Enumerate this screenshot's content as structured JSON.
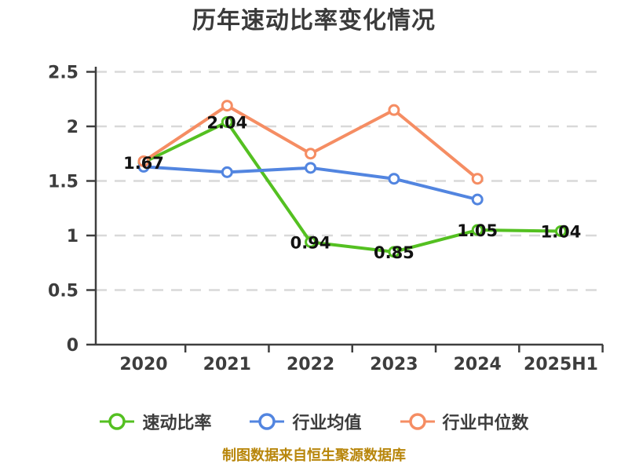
{
  "title": "历年速动比率变化情况",
  "source_note": "制图数据来自恒生聚源数据库",
  "colors": {
    "quick_ratio": "#54c021",
    "industry_avg": "#5285e0",
    "industry_median": "#f58d63",
    "grid": "#d9d9d9",
    "axis": "#3f3f3f",
    "tick": "#3d3d3d",
    "value_label": "#111111",
    "title": "#3b3b3b",
    "source": "#b8860b",
    "marker_fill": "#ffffff"
  },
  "chart_data": {
    "type": "line",
    "title": "历年速动比率变化情况",
    "categories": [
      "2020",
      "2021",
      "2022",
      "2023",
      "2024",
      "2025H1"
    ],
    "series": [
      {
        "name": "速动比率",
        "color_key": "quick_ratio",
        "labeled": true,
        "values": [
          1.67,
          2.04,
          0.94,
          0.85,
          1.05,
          1.04
        ]
      },
      {
        "name": "行业均值",
        "color_key": "industry_avg",
        "labeled": false,
        "values": [
          1.63,
          1.58,
          1.62,
          1.52,
          1.33,
          null
        ]
      },
      {
        "name": "行业中位数",
        "color_key": "industry_median",
        "labeled": false,
        "values": [
          1.68,
          2.19,
          1.75,
          2.15,
          1.52,
          null
        ]
      }
    ],
    "xlabel": "",
    "ylabel": "",
    "ylim": [
      0,
      2.5
    ],
    "yticks": [
      0,
      0.5,
      1,
      1.5,
      2,
      2.5
    ],
    "grid": "horizontal-dashed",
    "legend_position": "bottom",
    "value_labels_on": "速动比率"
  }
}
